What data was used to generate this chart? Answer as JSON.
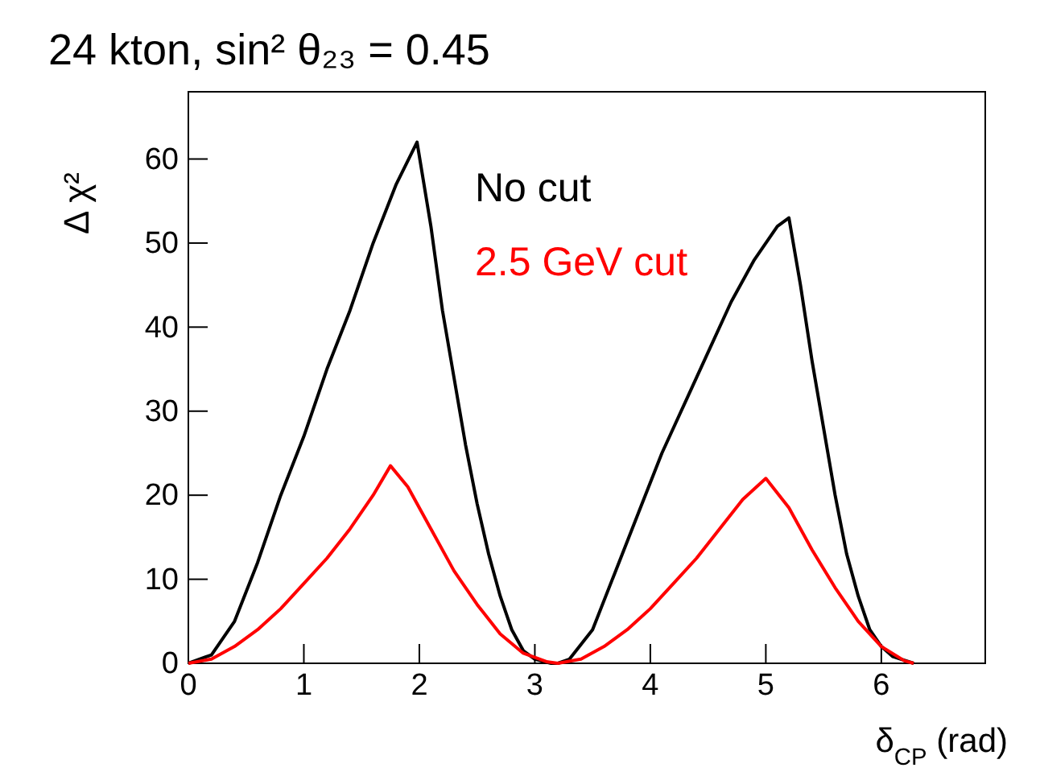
{
  "chart_data": {
    "type": "line",
    "title": "24 kton, sin² θ₂₃ = 0.45",
    "xlabel": "δ$_{CP}$ (rad)",
    "ylabel": "Δ χ²",
    "xlim": [
      0,
      6.9
    ],
    "ylim": [
      0,
      68
    ],
    "xticks": [
      0,
      1,
      2,
      3,
      4,
      5,
      6
    ],
    "yticks": [
      0,
      10,
      20,
      30,
      40,
      50,
      60
    ],
    "grid": false,
    "legend": "top right",
    "line_style": "solid",
    "marker": "none",
    "series": [
      {
        "name": "No cut",
        "color": "#000000",
        "x": [
          0,
          0.2,
          0.4,
          0.6,
          0.8,
          1.0,
          1.2,
          1.4,
          1.6,
          1.8,
          1.98,
          2.1,
          2.2,
          2.3,
          2.4,
          2.5,
          2.6,
          2.7,
          2.8,
          2.9,
          3.0,
          3.14,
          3.2,
          3.3,
          3.5,
          3.7,
          3.9,
          4.1,
          4.3,
          4.5,
          4.7,
          4.9,
          5.1,
          5.2,
          5.3,
          5.4,
          5.5,
          5.6,
          5.7,
          5.8,
          5.9,
          6.0,
          6.1,
          6.28
        ],
        "values": [
          0,
          1,
          5,
          12,
          20,
          27,
          35,
          42,
          50,
          57,
          62,
          52,
          42,
          34,
          26,
          19,
          13,
          8,
          4,
          1.5,
          0.5,
          0,
          0,
          0.5,
          4,
          11,
          18,
          25,
          31,
          37,
          43,
          48,
          52,
          53,
          45,
          36,
          28,
          20,
          13,
          8,
          4,
          2,
          0.8,
          0
        ]
      },
      {
        "name": "2.5 GeV cut",
        "color": "#ff0000",
        "x": [
          0,
          0.2,
          0.4,
          0.6,
          0.8,
          1.0,
          1.2,
          1.4,
          1.6,
          1.75,
          1.9,
          2.1,
          2.3,
          2.5,
          2.7,
          2.9,
          3.1,
          3.2,
          3.4,
          3.6,
          3.8,
          4.0,
          4.2,
          4.4,
          4.6,
          4.8,
          5.0,
          5.2,
          5.4,
          5.6,
          5.8,
          6.0,
          6.2,
          6.28
        ],
        "values": [
          0,
          0.5,
          2,
          4,
          6.5,
          9.5,
          12.5,
          16,
          20,
          23.5,
          21,
          16,
          11,
          7,
          3.5,
          1.2,
          0.2,
          0,
          0.5,
          2,
          4,
          6.5,
          9.5,
          12.5,
          16,
          19.5,
          22,
          18.5,
          13.5,
          9,
          5,
          2,
          0.3,
          0
        ]
      }
    ]
  }
}
